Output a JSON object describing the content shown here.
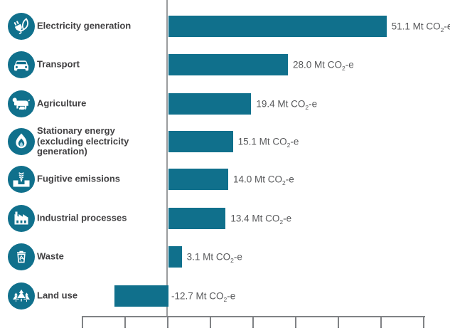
{
  "chart_data": {
    "type": "bar",
    "orientation": "horizontal",
    "title": "",
    "xlabel": "",
    "ylabel": "",
    "unit": "Mt CO2-e",
    "categories": [
      "Electricity generation",
      "Transport",
      "Agriculture",
      "Stationary energy (excluding electricity generation)",
      "Fugitive emissions",
      "Industrial processes",
      "Waste",
      "Land use"
    ],
    "values": [
      51.1,
      28.0,
      19.4,
      15.1,
      14.0,
      13.4,
      3.1,
      -12.7
    ],
    "xlim": [
      -20,
      60
    ],
    "x_tick_step": 10,
    "x_tick_labels_visible": false,
    "grid": false,
    "legend": false,
    "value_labels": true
  },
  "unit_label": {
    "prefix": " Mt CO",
    "sub": "2",
    "suffix": "-e"
  },
  "colors": {
    "bar": "#10708c",
    "icon_circle": "#10708c",
    "category_text": "#414042",
    "value_text": "#58595b",
    "zero_axis_line": "#9a9c9e",
    "x_axis_line": "#808285",
    "background": "#ffffff"
  },
  "rows": [
    {
      "label": "Electricity generation",
      "icon": "electricity-generation",
      "value": 51.1,
      "value_display": "51.1"
    },
    {
      "label": "Transport",
      "icon": "transport",
      "value": 28.0,
      "value_display": "28.0"
    },
    {
      "label": "Agriculture",
      "icon": "agriculture",
      "value": 19.4,
      "value_display": "19.4"
    },
    {
      "label": "Stationary energy\n(excluding electricity\ngeneration)",
      "icon": "stationary-energy",
      "value": 15.1,
      "value_display": "15.1"
    },
    {
      "label": "Fugitive emissions",
      "icon": "fugitive-emissions",
      "value": 14.0,
      "value_display": "14.0"
    },
    {
      "label": "Industrial processes",
      "icon": "industrial-processes",
      "value": 13.4,
      "value_display": "13.4"
    },
    {
      "label": "Waste",
      "icon": "waste",
      "value": 3.1,
      "value_display": "3.1"
    },
    {
      "label": "Land use",
      "icon": "land-use",
      "value": -12.7,
      "value_display": "-12.7"
    }
  ]
}
